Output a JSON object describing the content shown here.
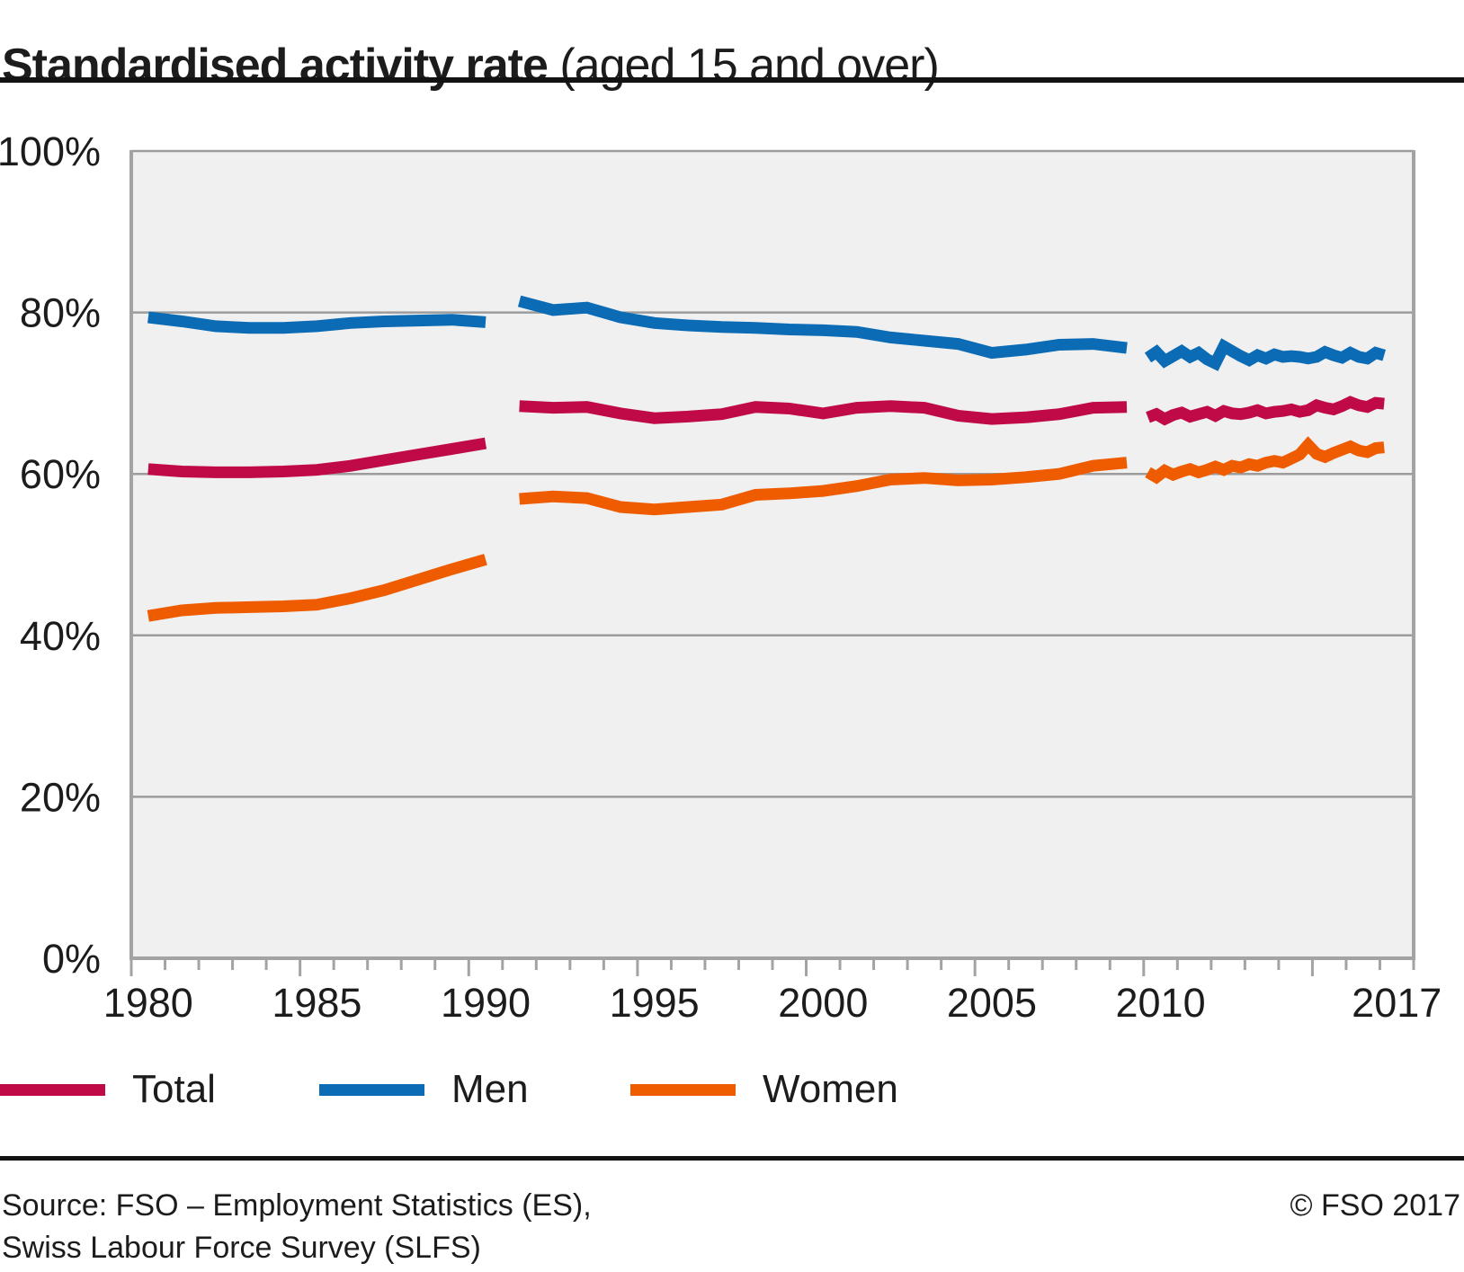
{
  "title": {
    "main": "Standardised activity rate",
    "sub": " (aged 15 and over)"
  },
  "legend": [
    {
      "label": "Total",
      "color": "#c00a48"
    },
    {
      "label": "Men",
      "color": "#0b6bb5"
    },
    {
      "label": "Women",
      "color": "#ef5c00"
    }
  ],
  "footer": {
    "source_line1": "Source: FSO – Employment Statistics (ES),",
    "source_line2": "Swiss Labour Force Survey (SLFS)",
    "copyright": "© FSO 2017"
  },
  "colors": {
    "plot_background": "#f0f0f0",
    "gridline": "#9c9c9c",
    "axis": "#a3a3a3",
    "text": "#1c1c1c",
    "total": "#c00a48",
    "men": "#0b6bb5",
    "women": "#ef5c00"
  },
  "chart_data": {
    "type": "line",
    "title": "Standardised activity rate (aged 15 and over)",
    "xlabel": "",
    "ylabel": "",
    "ylim": [
      0,
      100
    ],
    "xlim": [
      1980,
      2018
    ],
    "grid": true,
    "legend_position": "bottom",
    "y_ticks": [
      0,
      20,
      40,
      60,
      80,
      100
    ],
    "y_tick_labels": [
      "0%",
      "20%",
      "40%",
      "60%",
      "80%",
      "100%"
    ],
    "x_label_years": [
      1980,
      1985,
      1990,
      1995,
      2000,
      2005,
      2010,
      2017
    ],
    "x_tick_labels": [
      "1980",
      "1985",
      "1990",
      "1995",
      "2000",
      "2005",
      "2010",
      "2017"
    ],
    "series": [
      {
        "name": "Men",
        "color_key": "men",
        "segments": [
          {
            "x_start": 1980.5,
            "x_step": 1,
            "values": [
              79.4,
              78.9,
              78.3,
              78.1,
              78.1,
              78.3,
              78.7,
              78.9,
              79.0,
              79.1,
              78.8
            ]
          },
          {
            "x_start": 1991.5,
            "x_step": 1,
            "values": [
              81.4,
              80.3,
              80.6,
              79.4,
              78.7,
              78.4,
              78.2,
              78.1,
              77.9,
              77.8,
              77.6,
              76.9,
              76.5,
              76.1,
              75.0,
              75.4,
              76.0,
              76.1,
              75.6
            ]
          },
          {
            "x_start": 2010.125,
            "x_step": 0.25,
            "values": [
              74.4,
              75.1,
              74.0,
              74.6,
              75.2,
              74.5,
              75.0,
              74.2,
              73.7,
              75.8,
              75.2,
              74.6,
              74.1,
              74.7,
              74.3,
              74.8,
              74.5,
              74.6,
              74.5,
              74.3,
              74.5,
              75.1,
              74.7,
              74.4,
              75.0,
              74.5,
              74.3,
              75.0,
              74.7
            ]
          }
        ]
      },
      {
        "name": "Total",
        "color_key": "total",
        "segments": [
          {
            "x_start": 1980.5,
            "x_step": 1,
            "values": [
              60.6,
              60.3,
              60.2,
              60.2,
              60.3,
              60.5,
              61.0,
              61.7,
              62.4,
              63.1,
              63.8
            ]
          },
          {
            "x_start": 1991.5,
            "x_step": 1,
            "values": [
              68.4,
              68.2,
              68.3,
              67.5,
              66.9,
              67.1,
              67.4,
              68.3,
              68.1,
              67.5,
              68.2,
              68.4,
              68.2,
              67.2,
              66.8,
              67.0,
              67.4,
              68.2,
              68.3
            ]
          },
          {
            "x_start": 2010.125,
            "x_step": 0.25,
            "values": [
              67.0,
              67.4,
              66.8,
              67.3,
              67.6,
              67.1,
              67.4,
              67.7,
              67.2,
              67.8,
              67.5,
              67.4,
              67.6,
              67.9,
              67.5,
              67.7,
              67.8,
              68.0,
              67.7,
              67.9,
              68.5,
              68.2,
              68.0,
              68.4,
              68.9,
              68.5,
              68.3,
              68.8,
              68.7
            ]
          }
        ]
      },
      {
        "name": "Women",
        "color_key": "women",
        "segments": [
          {
            "x_start": 1980.5,
            "x_step": 1,
            "values": [
              42.4,
              43.1,
              43.4,
              43.5,
              43.6,
              43.8,
              44.6,
              45.6,
              46.9,
              48.2,
              49.4
            ]
          },
          {
            "x_start": 1991.5,
            "x_step": 1,
            "values": [
              56.9,
              57.2,
              57.0,
              55.9,
              55.6,
              55.9,
              56.2,
              57.4,
              57.6,
              57.9,
              58.5,
              59.3,
              59.5,
              59.2,
              59.3,
              59.6,
              60.0,
              61.0,
              61.4
            ]
          },
          {
            "x_start": 2010.125,
            "x_step": 0.25,
            "values": [
              60.2,
              59.6,
              60.4,
              59.9,
              60.3,
              60.6,
              60.2,
              60.5,
              60.9,
              60.5,
              61.0,
              60.8,
              61.2,
              61.0,
              61.4,
              61.6,
              61.4,
              61.9,
              62.4,
              63.6,
              62.5,
              62.1,
              62.6,
              63.0,
              63.4,
              62.9,
              62.7,
              63.2,
              63.3
            ]
          }
        ]
      }
    ]
  }
}
